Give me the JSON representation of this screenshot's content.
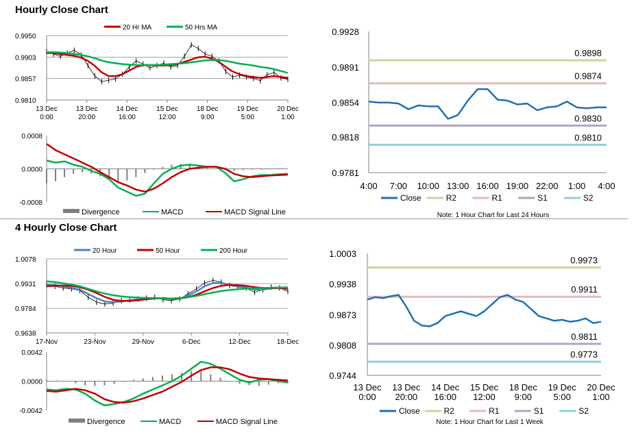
{
  "sections": [
    {
      "title": "Hourly Close Chart"
    },
    {
      "title": "4 Hourly Close Chart"
    }
  ],
  "chart_data": [
    {
      "id": "hourly-price",
      "type": "line",
      "legend": [
        "20 Hr MA",
        "50 Hrs MA"
      ],
      "legend_colors": [
        "#c00000",
        "#00b050"
      ],
      "close_color": "#000000",
      "yticks": [
        "0.9950",
        "0.9903",
        "0.9857",
        "0.9810"
      ],
      "ylim": [
        0.981,
        0.995
      ],
      "xticks": [
        "13 Dec\n0:00",
        "13 Dec\n20:00",
        "14 Dec\n16:00",
        "15 Dec\n12:00",
        "18 Dec\n9:00",
        "19 Dec\n5:00",
        "20 Dec\n1:00"
      ],
      "series": [
        {
          "name": "Close",
          "values": [
            0.9915,
            0.991,
            0.9905,
            0.9912,
            0.9918,
            0.9908,
            0.9885,
            0.9862,
            0.985,
            0.9853,
            0.9856,
            0.9866,
            0.9882,
            0.9895,
            0.9888,
            0.988,
            0.9885,
            0.989,
            0.9882,
            0.9885,
            0.9905,
            0.993,
            0.9922,
            0.991,
            0.9905,
            0.9895,
            0.9872,
            0.986,
            0.9864,
            0.986,
            0.9857,
            0.9852,
            0.9865,
            0.987,
            0.9858,
            0.9855
          ]
        },
        {
          "name": "20 Hr MA",
          "values": [
            0.9912,
            0.9912,
            0.991,
            0.9908,
            0.9906,
            0.9902,
            0.9895,
            0.9884,
            0.987,
            0.9862,
            0.9862,
            0.9866,
            0.9874,
            0.9882,
            0.9886,
            0.9886,
            0.9885,
            0.9885,
            0.9886,
            0.9888,
            0.9893,
            0.9898,
            0.9903,
            0.9904,
            0.99,
            0.9893,
            0.9882,
            0.9872,
            0.9866,
            0.9862,
            0.986,
            0.9858,
            0.986,
            0.9862,
            0.986,
            0.9858
          ]
        },
        {
          "name": "50 Hrs MA",
          "values": [
            0.9914,
            0.9914,
            0.9913,
            0.9912,
            0.991,
            0.9908,
            0.9905,
            0.9901,
            0.9896,
            0.9892,
            0.989,
            0.9888,
            0.9887,
            0.9886,
            0.9886,
            0.9886,
            0.9886,
            0.9887,
            0.9888,
            0.9889,
            0.989,
            0.9892,
            0.9894,
            0.9896,
            0.9897,
            0.9897,
            0.9895,
            0.9892,
            0.9889,
            0.9887,
            0.9885,
            0.9882,
            0.988,
            0.9877,
            0.9873,
            0.9869
          ]
        }
      ]
    },
    {
      "id": "hourly-macd",
      "type": "line",
      "legend": [
        "Divergence",
        "MACD",
        "MACD Signal Line"
      ],
      "legend_colors": [
        "#7f7f7f",
        "#00b050",
        "#c00000"
      ],
      "yticks": [
        "0.0008",
        "0.0000",
        "-0.0008"
      ],
      "ylim": [
        -0.0008,
        0.0008
      ],
      "series": [
        {
          "name": "Divergence",
          "values": [
            -0.00035,
            -0.0003,
            -0.0002,
            -0.00012,
            -8e-05,
            -0.00012,
            -0.00018,
            -0.00025,
            -0.0003,
            -0.00028,
            -0.0002,
            -0.0001,
            -2e-05,
            5e-05,
            0.0001,
            0.00012,
            0.00012,
            0.0001,
            5e-05,
            0.0,
            -3e-05,
            -5e-05,
            -3e-05,
            -2e-05,
            -2e-05,
            -1e-05,
            0.0,
            0.0
          ]
        },
        {
          "name": "MACD",
          "values": [
            0.0002,
            0.00015,
            0.00018,
            0.0001,
            5e-05,
            -5e-05,
            -0.00012,
            -0.00025,
            -0.00045,
            -0.00055,
            -0.00065,
            -0.0006,
            -0.00035,
            -0.00012,
            0.0,
            8e-05,
            0.0001,
            8e-05,
            5e-05,
            5e-05,
            -0.0001,
            -0.0003,
            -0.00025,
            -0.00018,
            -0.00015,
            -0.00015,
            -0.00013,
            -0.00012
          ]
        },
        {
          "name": "MACD Signal Line",
          "values": [
            0.0006,
            0.00045,
            0.00035,
            0.00025,
            0.00015,
            5e-05,
            -8e-05,
            -0.0002,
            -0.00032,
            -0.0004,
            -0.0005,
            -0.00055,
            -0.00048,
            -0.00035,
            -0.0002,
            -8e-05,
            0.0,
            3e-05,
            5e-05,
            5e-05,
            0.0,
            -0.00012,
            -0.00018,
            -0.0002,
            -0.00018,
            -0.00016,
            -0.00015,
            -0.00014
          ]
        }
      ]
    },
    {
      "id": "hourly-24h",
      "type": "line",
      "ylim": [
        0.9781,
        0.9928
      ],
      "yticks": [
        "0.9928",
        "0.9891",
        "0.9854",
        "0.9818",
        "0.9781"
      ],
      "xticks": [
        "4:00",
        "7:00",
        "10:00",
        "13:00",
        "16:00",
        "19:00",
        "22:00",
        "1:00",
        "4:00"
      ],
      "levels": [
        {
          "name": "R2",
          "value": 0.9898,
          "label": "0.9898",
          "color": "#c4d79b"
        },
        {
          "name": "R1",
          "value": 0.9874,
          "label": "0.9874",
          "color": "#e6b9b8"
        },
        {
          "name": "S1",
          "value": 0.983,
          "label": "0.9830",
          "color": "#b3a2c7"
        },
        {
          "name": "S2",
          "value": 0.981,
          "label": "0.9810",
          "color": "#93cddd"
        }
      ],
      "series": [
        {
          "name": "Close",
          "color": "#1f6fb4",
          "values": [
            0.9855,
            0.9854,
            0.9854,
            0.9853,
            0.9847,
            0.9851,
            0.985,
            0.985,
            0.9837,
            0.9841,
            0.9856,
            0.9868,
            0.9868,
            0.9857,
            0.9856,
            0.9852,
            0.9853,
            0.9846,
            0.9849,
            0.985,
            0.9855,
            0.9849,
            0.9848,
            0.9849,
            0.9849
          ]
        }
      ],
      "legend": [
        "Close",
        "R2",
        "R1",
        "S1",
        "S2"
      ],
      "note": "Note: 1 Hour Chart for Last 24 Hours"
    },
    {
      "id": "four-hourly-price",
      "type": "line",
      "legend": [
        "20 Hour",
        "50 Hour",
        "200 Hour"
      ],
      "legend_colors": [
        "#4f81bd",
        "#c00000",
        "#00b050"
      ],
      "yticks": [
        "1.0078",
        "0.9931",
        "0.9784",
        "0.9638"
      ],
      "ylim": [
        0.9638,
        1.0078
      ],
      "xticks": [
        "17-Nov",
        "23-Nov",
        "29-Nov",
        "6-Dec",
        "12-Dec",
        "18-Dec"
      ],
      "series": [
        {
          "name": "Close",
          "values": [
            0.9925,
            0.9915,
            0.9905,
            0.99,
            0.989,
            0.985,
            0.982,
            0.981,
            0.9815,
            0.983,
            0.9835,
            0.984,
            0.9845,
            0.985,
            0.9835,
            0.983,
            0.984,
            0.987,
            0.99,
            0.9935,
            0.995,
            0.994,
            0.992,
            0.991,
            0.9905,
            0.988,
            0.9895,
            0.991,
            0.9905,
            0.9885
          ]
        },
        {
          "name": "20 Hour",
          "values": [
            0.9925,
            0.9922,
            0.9915,
            0.9905,
            0.9895,
            0.987,
            0.9845,
            0.9825,
            0.982,
            0.9825,
            0.9832,
            0.9838,
            0.9842,
            0.9846,
            0.9842,
            0.9838,
            0.9842,
            0.986,
            0.9885,
            0.9915,
            0.9935,
            0.9935,
            0.9925,
            0.9915,
            0.9908,
            0.9895,
            0.9895,
            0.9903,
            0.9905,
            0.9897
          ]
        },
        {
          "name": "50 Hour",
          "values": [
            0.9915,
            0.9918,
            0.992,
            0.9917,
            0.991,
            0.9895,
            0.9875,
            0.9852,
            0.9835,
            0.9828,
            0.9828,
            0.9832,
            0.9838,
            0.9843,
            0.9845,
            0.9842,
            0.9842,
            0.985,
            0.9865,
            0.9885,
            0.9905,
            0.9918,
            0.9923,
            0.9922,
            0.9918,
            0.991,
            0.9905,
            0.9905,
            0.9905,
            0.9903
          ]
        },
        {
          "name": "200 Hour",
          "values": [
            0.9945,
            0.994,
            0.9933,
            0.9925,
            0.9915,
            0.99,
            0.9885,
            0.9872,
            0.9862,
            0.9855,
            0.9851,
            0.9848,
            0.9846,
            0.9844,
            0.9843,
            0.9843,
            0.9845,
            0.985,
            0.9858,
            0.9868,
            0.9878,
            0.9887,
            0.9893,
            0.9898,
            0.9901,
            0.9903,
            0.9905,
            0.9907,
            0.9908,
            0.9909
          ]
        }
      ]
    },
    {
      "id": "four-hourly-macd",
      "type": "line",
      "legend": [
        "Divergence",
        "MACD",
        "MACD Signal Line"
      ],
      "legend_colors": [
        "#7f7f7f",
        "#00b050",
        "#c00000"
      ],
      "yticks": [
        "0.0042",
        "0.0000",
        "-0.0042"
      ],
      "ylim": [
        -0.0042,
        0.0042
      ],
      "series": [
        {
          "name": "Divergence",
          "values": [
            0.0002,
            0.0001,
            0.0,
            -0.0003,
            -0.0006,
            -0.0007,
            -0.0006,
            -0.0004,
            -0.0001,
            0.0002,
            0.0004,
            0.0006,
            0.0008,
            0.001,
            0.0012,
            0.0015,
            0.0014,
            0.001,
            0.0005,
            0.0,
            -0.0004,
            -0.0006,
            -0.0007,
            -0.0005,
            -0.0003,
            -0.0002
          ]
        },
        {
          "name": "MACD",
          "values": [
            -0.0012,
            -0.0013,
            -0.0011,
            -0.0012,
            -0.0018,
            -0.0028,
            -0.0035,
            -0.0033,
            -0.003,
            -0.0025,
            -0.0018,
            -0.0012,
            -0.0006,
            0.0,
            0.0008,
            0.0018,
            0.0028,
            0.0025,
            0.0018,
            0.001,
            0.0002,
            -0.0002,
            0.0002,
            0.0003,
            0.0,
            -0.0002
          ]
        },
        {
          "name": "MACD Signal Line",
          "values": [
            -0.0014,
            -0.0015,
            -0.0013,
            -0.0011,
            -0.0013,
            -0.0018,
            -0.0026,
            -0.003,
            -0.0031,
            -0.0029,
            -0.0025,
            -0.002,
            -0.0015,
            -0.0008,
            -0.0001,
            0.0008,
            0.0016,
            0.002,
            0.002,
            0.0017,
            0.0011,
            0.0006,
            0.0004,
            0.0003,
            0.0002,
            0.0001
          ]
        }
      ]
    },
    {
      "id": "four-hourly-week",
      "type": "line",
      "ylim": [
        0.9744,
        1.0003
      ],
      "yticks": [
        "1.0003",
        "0.9938",
        "0.9873",
        "0.9808",
        "0.9744"
      ],
      "xticks": [
        "13 Dec\n0:00",
        "13 Dec\n20:00",
        "14 Dec\n16:00",
        "15 Dec\n12:00",
        "18 Dec\n9:00",
        "19 Dec\n5:00",
        "20 Dec\n1:00"
      ],
      "levels": [
        {
          "name": "R2",
          "value": 0.9973,
          "label": "0.9973",
          "color": "#c4d79b"
        },
        {
          "name": "R1",
          "value": 0.9911,
          "label": "0.9911",
          "color": "#e6b9b8"
        },
        {
          "name": "S1",
          "value": 0.9811,
          "label": "0.9811",
          "color": "#b3a2c7"
        },
        {
          "name": "S2",
          "value": 0.9773,
          "label": "0.9773",
          "color": "#93cddd"
        }
      ],
      "series": [
        {
          "name": "Close",
          "color": "#1f6fb4",
          "values": [
            0.9905,
            0.991,
            0.9908,
            0.9912,
            0.9915,
            0.989,
            0.986,
            0.985,
            0.9848,
            0.9855,
            0.987,
            0.9875,
            0.988,
            0.9875,
            0.987,
            0.988,
            0.9895,
            0.991,
            0.9915,
            0.9905,
            0.99,
            0.9885,
            0.987,
            0.9865,
            0.986,
            0.9862,
            0.9858,
            0.986,
            0.9865,
            0.9855,
            0.9858
          ]
        }
      ],
      "legend": [
        "Close",
        "R2",
        "R1",
        "S1",
        "S2"
      ],
      "note": "Note: 1 Hour Chart for Last 1 Week"
    }
  ]
}
